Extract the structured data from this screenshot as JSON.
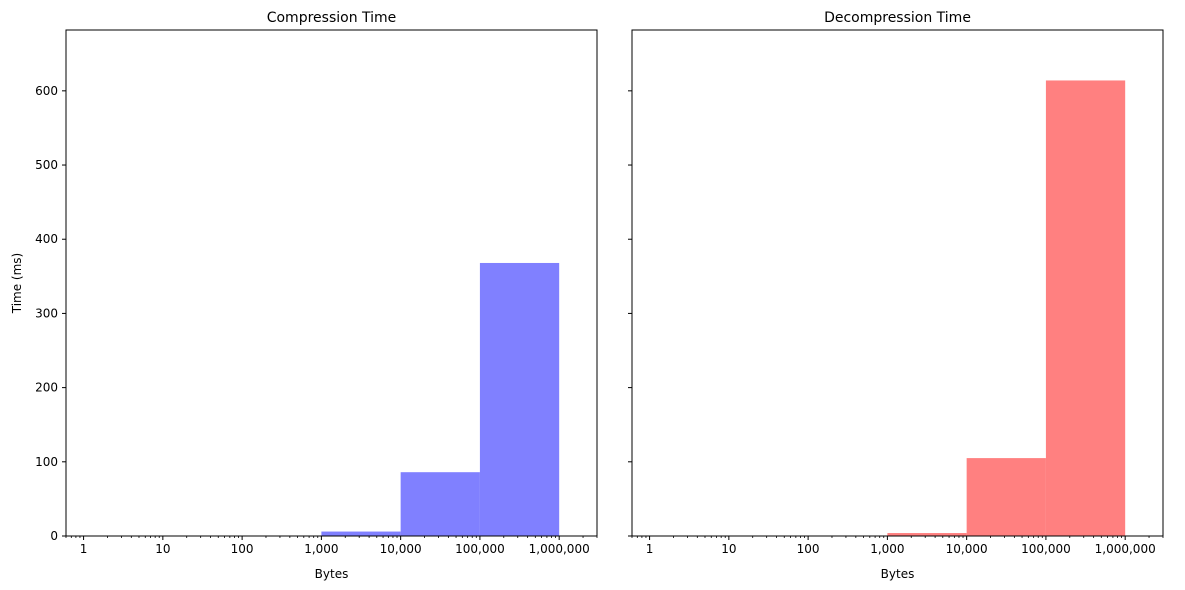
{
  "chart_data": [
    {
      "type": "bar",
      "title": "Compression Time",
      "xlabel": "Bytes",
      "ylabel": "Time (ms)",
      "x_scale": "log",
      "xlim": [
        0.6,
        3000000
      ],
      "ylim": [
        0,
        682
      ],
      "x_ticks": [
        1,
        10,
        100,
        1000,
        10000,
        100000,
        1000000
      ],
      "x_tick_labels": [
        "1",
        "10",
        "100",
        "1,000",
        "10,000",
        "100,000",
        "1,000,000"
      ],
      "y_ticks": [
        0,
        100,
        200,
        300,
        400,
        500,
        600
      ],
      "y_tick_labels": [
        "0",
        "100",
        "200",
        "300",
        "400",
        "500",
        "600"
      ],
      "bars": [
        {
          "x_start": 1,
          "x_end": 10,
          "value": 0
        },
        {
          "x_start": 10,
          "x_end": 100,
          "value": 0
        },
        {
          "x_start": 100,
          "x_end": 1000,
          "value": 0
        },
        {
          "x_start": 1000,
          "x_end": 10000,
          "value": 6
        },
        {
          "x_start": 10000,
          "x_end": 100000,
          "value": 86
        },
        {
          "x_start": 100000,
          "x_end": 1000000,
          "value": 368
        }
      ],
      "color": "#8080ff",
      "grid": false
    },
    {
      "type": "bar",
      "title": "Decompression Time",
      "xlabel": "Bytes",
      "ylabel": "",
      "x_scale": "log",
      "xlim": [
        0.6,
        3000000
      ],
      "ylim": [
        0,
        682
      ],
      "x_ticks": [
        1,
        10,
        100,
        1000,
        10000,
        100000,
        1000000
      ],
      "x_tick_labels": [
        "1",
        "10",
        "100",
        "1,000",
        "10,000",
        "100,000",
        "1,000,000"
      ],
      "y_ticks": [
        0,
        100,
        200,
        300,
        400,
        500,
        600
      ],
      "y_tick_labels": [],
      "bars": [
        {
          "x_start": 1,
          "x_end": 10,
          "value": 0
        },
        {
          "x_start": 10,
          "x_end": 100,
          "value": 0
        },
        {
          "x_start": 100,
          "x_end": 1000,
          "value": 0
        },
        {
          "x_start": 1000,
          "x_end": 10000,
          "value": 4
        },
        {
          "x_start": 10000,
          "x_end": 100000,
          "value": 105
        },
        {
          "x_start": 100000,
          "x_end": 1000000,
          "value": 614
        }
      ],
      "color": "#ff8080",
      "grid": false
    }
  ]
}
